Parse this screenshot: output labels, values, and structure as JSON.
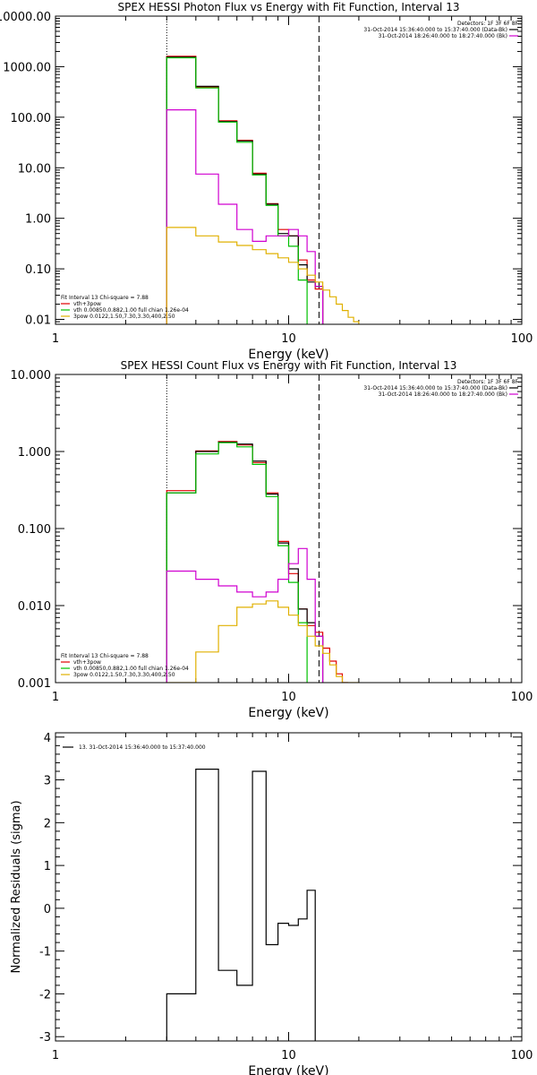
{
  "chart_data": [
    {
      "type": "line",
      "title": "SPEX HESSI Photon Flux vs Energy with Fit Function, Interval 13",
      "xlabel": "Energy (keV)",
      "ylabel": "",
      "x_scale": "log",
      "y_scale": "log",
      "xlim": [
        1,
        100
      ],
      "ylim": [
        0.008,
        10000
      ],
      "x_ticks": [
        {
          "v": 1,
          "label": "1"
        },
        {
          "v": 10,
          "label": "10"
        },
        {
          "v": 100,
          "label": "100"
        }
      ],
      "y_ticks": [
        {
          "v": 10000,
          "label": "10000.00"
        },
        {
          "v": 1000,
          "label": "1000.00"
        },
        {
          "v": 100,
          "label": "100.00"
        },
        {
          "v": 10,
          "label": "10.00"
        },
        {
          "v": 1,
          "label": "1.00"
        },
        {
          "v": 0.1,
          "label": "0.10"
        },
        {
          "v": 0.01,
          "label": "0.01"
        }
      ],
      "vlines": [
        {
          "x": 3.0,
          "style": "dotted"
        },
        {
          "x": 13.5,
          "style": "dashed"
        }
      ],
      "legend_tr": [
        {
          "text": "Detectors: 1F 3F 6F 8F",
          "color": ""
        },
        {
          "text": "31-Oct-2014 15:36:40.000 to 15:37:40.000 (Data-Bk)",
          "color": "#000000"
        },
        {
          "text": "31-Oct-2014 18:26:40.000 to 18:27:40.000 (Bk)",
          "color": "#d000d0"
        }
      ],
      "legend_bl": [
        {
          "text": "Fit Interval 13   Chi-square = 7.88",
          "color": ""
        },
        {
          "text": "vth+3pow",
          "color": "#e00000"
        },
        {
          "text": "vth 0.00850,0.882,1.00  full chian 1.26e-04",
          "color": "#00c000"
        },
        {
          "text": "3pow 0.0122,1.50,7.30,3.30,400,2.50",
          "color": "#e0b000"
        }
      ],
      "series": [
        {
          "color": "#e00000",
          "edges": [
            3.0,
            4.0,
            5.0,
            6.0,
            7.0,
            8.0,
            9.0,
            10.0,
            11.0,
            12.0,
            13.0,
            14.0
          ],
          "values": [
            1600,
            400,
            85,
            35,
            7.8,
            1.95,
            0.6,
            0.45,
            0.15,
            0.06,
            0.04
          ]
        },
        {
          "color": "#000000",
          "edges": [
            3.0,
            4.0,
            5.0,
            6.0,
            7.0,
            8.0,
            9.0,
            10.0,
            11.0,
            12.0,
            13.0,
            14.0
          ],
          "values": [
            1550,
            410,
            82,
            34,
            7.5,
            1.9,
            0.5,
            0.45,
            0.12,
            0.055,
            0.045
          ]
        },
        {
          "color": "#00c000",
          "edges": [
            3.0,
            4.0,
            5.0,
            6.0,
            7.0,
            8.0,
            9.0,
            10.0,
            11.0,
            12.0
          ],
          "values": [
            1500,
            380,
            80,
            32,
            7.2,
            1.8,
            0.45,
            0.28,
            0.06
          ]
        },
        {
          "color": "#d000d0",
          "edges": [
            3.0,
            4.0,
            5.0,
            6.0,
            7.0,
            8.0,
            9.0,
            10.0,
            11.0,
            12.0,
            13.0,
            14.0
          ],
          "values": [
            140,
            7.5,
            1.9,
            0.6,
            0.35,
            0.45,
            0.45,
            0.6,
            0.45,
            0.22,
            0.045
          ]
        },
        {
          "color": "#e0b000",
          "edges": [
            3.0,
            4.0,
            5.0,
            6.0,
            7.0,
            8.0,
            9.0,
            10.0,
            11.0,
            12.0,
            13.0,
            14.0,
            15.0,
            16.0,
            17.0,
            18.0,
            19.0,
            20.0
          ],
          "values": [
            0.66,
            0.45,
            0.34,
            0.29,
            0.24,
            0.2,
            0.165,
            0.135,
            0.1,
            0.075,
            0.055,
            0.038,
            0.028,
            0.02,
            0.015,
            0.011,
            0.009
          ]
        }
      ]
    },
    {
      "type": "line",
      "title": "SPEX HESSI Count Flux vs Energy with Fit Function, Interval 13",
      "xlabel": "Energy (keV)",
      "ylabel": "",
      "x_scale": "log",
      "y_scale": "log",
      "xlim": [
        1,
        100
      ],
      "ylim": [
        0.001,
        10
      ],
      "x_ticks": [
        {
          "v": 1,
          "label": "1"
        },
        {
          "v": 10,
          "label": "10"
        },
        {
          "v": 100,
          "label": "100"
        }
      ],
      "y_ticks": [
        {
          "v": 10,
          "label": "10.000"
        },
        {
          "v": 1,
          "label": "1.000"
        },
        {
          "v": 0.1,
          "label": "0.100"
        },
        {
          "v": 0.01,
          "label": "0.010"
        },
        {
          "v": 0.001,
          "label": "0.001"
        }
      ],
      "vlines": [
        {
          "x": 3.0,
          "style": "dotted"
        },
        {
          "x": 13.5,
          "style": "dashed"
        }
      ],
      "legend_tr": [
        {
          "text": "Detectors: 1F 3F 6F 8F",
          "color": ""
        },
        {
          "text": "31-Oct-2014 15:36:40.000 to 15:37:40.000 (Data-Bk)",
          "color": "#000000"
        },
        {
          "text": "31-Oct-2014 18:26:40.000 to 18:27:40.000 (Bk)",
          "color": "#d000d0"
        }
      ],
      "legend_bl": [
        {
          "text": "Fit Interval 13   Chi-square = 7.88",
          "color": ""
        },
        {
          "text": "vth+3pow",
          "color": "#e00000"
        },
        {
          "text": "vth 0.00850,0.882,1.00  full chian 1.26e-04",
          "color": "#00c000"
        },
        {
          "text": "3pow 0.0122,1.50,7.30,3.30,400,2.50",
          "color": "#e0b000"
        }
      ],
      "series": [
        {
          "color": "#e00000",
          "edges": [
            3.0,
            4.0,
            5.0,
            6.0,
            7.0,
            8.0,
            9.0,
            10.0,
            11.0,
            12.0,
            13.0,
            14.0,
            15.0,
            16.0,
            17.0,
            18.0
          ],
          "values": [
            0.31,
            1.02,
            1.35,
            1.22,
            0.72,
            0.29,
            0.068,
            0.026,
            0.009,
            0.0055,
            0.0045,
            0.0028,
            0.0019,
            0.0013,
            0.001
          ]
        },
        {
          "color": "#000000",
          "edges": [
            3.0,
            4.0,
            5.0,
            6.0,
            7.0,
            8.0,
            9.0,
            10.0,
            11.0,
            12.0,
            13.0,
            14.0
          ],
          "values": [
            0.29,
            1.0,
            1.32,
            1.25,
            0.75,
            0.28,
            0.065,
            0.03,
            0.009,
            0.006,
            0.004
          ]
        },
        {
          "color": "#00c000",
          "edges": [
            3.0,
            4.0,
            5.0,
            6.0,
            7.0,
            8.0,
            9.0,
            10.0,
            11.0,
            12.0
          ],
          "values": [
            0.29,
            0.93,
            1.3,
            1.15,
            0.68,
            0.26,
            0.06,
            0.02,
            0.006
          ]
        },
        {
          "color": "#d000d0",
          "edges": [
            3.0,
            4.0,
            5.0,
            6.0,
            7.0,
            8.0,
            9.0,
            10.0,
            11.0,
            12.0,
            13.0,
            14.0
          ],
          "values": [
            0.028,
            0.022,
            0.018,
            0.015,
            0.013,
            0.015,
            0.022,
            0.035,
            0.055,
            0.022,
            0.004
          ]
        },
        {
          "color": "#e0b000",
          "edges": [
            3.0,
            4.0,
            5.0,
            6.0,
            7.0,
            8.0,
            9.0,
            10.0,
            11.0,
            12.0,
            13.0,
            14.0,
            15.0,
            16.0,
            17.0,
            18.0,
            19.0,
            20.0
          ],
          "values": [
            0.001,
            0.0025,
            0.0055,
            0.0095,
            0.0105,
            0.0115,
            0.0095,
            0.0075,
            0.0055,
            0.004,
            0.003,
            0.0024,
            0.0017,
            0.0012,
            0.001,
            0.001,
            0.001
          ]
        }
      ]
    },
    {
      "type": "line",
      "title": "",
      "xlabel": "Energy (keV)",
      "ylabel": "Normalized Residuals (sigma)",
      "x_scale": "log",
      "y_scale": "linear",
      "xlim": [
        1,
        100
      ],
      "ylim": [
        -3.1,
        4.1
      ],
      "x_ticks": [
        {
          "v": 1,
          "label": "1"
        },
        {
          "v": 10,
          "label": "10"
        },
        {
          "v": 100,
          "label": "100"
        }
      ],
      "y_ticks": [
        {
          "v": 4,
          "label": "4"
        },
        {
          "v": 3,
          "label": "3"
        },
        {
          "v": 2,
          "label": "2"
        },
        {
          "v": 1,
          "label": "1"
        },
        {
          "v": 0,
          "label": "0"
        },
        {
          "v": -1,
          "label": "-1"
        },
        {
          "v": -2,
          "label": "-2"
        },
        {
          "v": -3,
          "label": "-3"
        }
      ],
      "vlines": [],
      "legend_tr": [],
      "legend_bl": [],
      "legend_tl": [
        {
          "text": "13. 31-Oct-2014 15:36:40.000 to 15:37:40.000",
          "color": "#000000"
        }
      ],
      "series": [
        {
          "color": "#000000",
          "edges": [
            3.0,
            4.0,
            5.0,
            6.0,
            7.0,
            8.0,
            9.0,
            10.0,
            11.0,
            12.0,
            13.0
          ],
          "values": [
            -2.0,
            3.25,
            -1.45,
            -1.8,
            3.2,
            -0.85,
            -0.35,
            -0.4,
            -0.25,
            0.42
          ]
        }
      ]
    }
  ]
}
